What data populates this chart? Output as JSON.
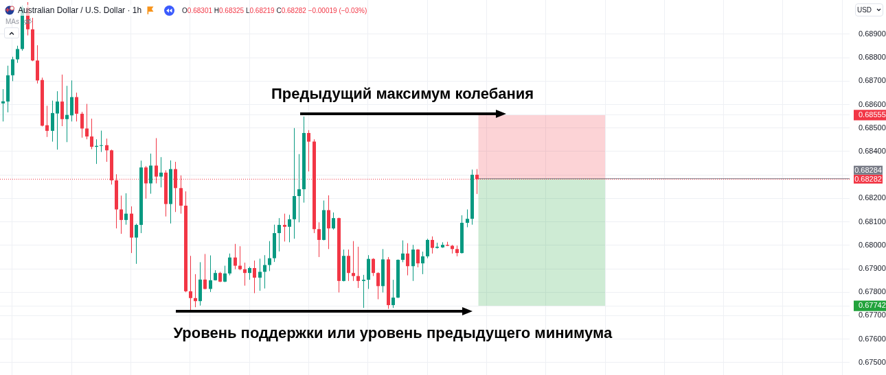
{
  "chart_data": {
    "type": "candlestick",
    "title": "Australian Dollar / U.S. Dollar · 1h",
    "subtitle": "O0.68301 H0.68325 L0.68219 C0.68282 −0.00019 (−0.03%)",
    "categories": [
      null,
      null,
      null,
      null,
      null,
      null,
      null,
      null,
      null,
      null,
      null,
      null,
      null,
      null,
      null,
      null,
      null,
      null,
      null,
      null,
      null,
      null,
      null,
      null,
      null,
      null,
      null,
      null,
      null,
      null,
      null,
      null,
      null,
      null,
      null,
      null,
      null,
      null,
      null,
      null,
      null,
      null,
      null,
      null,
      null,
      null,
      null,
      null,
      null,
      null,
      null,
      null,
      null,
      null,
      null,
      null,
      null,
      null,
      null,
      null,
      null,
      null,
      null,
      null,
      null,
      null,
      null,
      null,
      null,
      null,
      null,
      null,
      null,
      null,
      null,
      null,
      null,
      null,
      null,
      null,
      null,
      null,
      null,
      null,
      null,
      null,
      null,
      null,
      null,
      null,
      null,
      null,
      null,
      null,
      null,
      null,
      null,
      null,
      null,
      null,
      null,
      null,
      null,
      null,
      null,
      null,
      null,
      null,
      null,
      null,
      null,
      null,
      null,
      null,
      null,
      null,
      null,
      null,
      null,
      null,
      null,
      null,
      null,
      null,
      null,
      null,
      null,
      null,
      null,
      null,
      null,
      null,
      null,
      null,
      null,
      null,
      null,
      null,
      null,
      null,
      null,
      null,
      null,
      null,
      null,
      null,
      null,
      null,
      null,
      null,
      null,
      null,
      null,
      null,
      null,
      null,
      null,
      null,
      null,
      null,
      null,
      null,
      null,
      null,
      null,
      null,
      null,
      null,
      null,
      null,
      null,
      null
    ],
    "ohlc": [
      [
        0.68605,
        0.68666,
        0.68528,
        0.68614
      ],
      [
        0.68613,
        0.68766,
        0.68567,
        0.68725
      ],
      [
        0.68725,
        0.68804,
        0.687,
        0.68793
      ],
      [
        0.68793,
        0.68851,
        0.68778,
        0.68837
      ],
      [
        0.68837,
        0.69023,
        0.6883,
        0.69014
      ],
      [
        0.69014,
        0.69037,
        0.68895,
        0.68921
      ],
      [
        0.68921,
        0.6897,
        0.68785,
        0.68788
      ],
      [
        0.68788,
        0.68853,
        0.6869,
        0.68703
      ],
      [
        0.68705,
        0.68715,
        0.68507,
        0.6851
      ],
      [
        0.68512,
        0.68595,
        0.68462,
        0.68488
      ],
      [
        0.68488,
        0.68617,
        0.68442,
        0.68564
      ],
      [
        0.68562,
        0.68657,
        0.68408,
        0.68613
      ],
      [
        0.68613,
        0.68728,
        0.68508,
        0.68538
      ],
      [
        0.68538,
        0.6868,
        0.6844,
        0.68556
      ],
      [
        0.68554,
        0.68703,
        0.68528,
        0.68632
      ],
      [
        0.68632,
        0.68651,
        0.68528,
        0.68561
      ],
      [
        0.68561,
        0.68569,
        0.68459,
        0.68498
      ],
      [
        0.68498,
        0.68603,
        0.68452,
        0.68464
      ],
      [
        0.68464,
        0.6854,
        0.6841,
        0.6842
      ],
      [
        0.6842,
        0.68452,
        0.68347,
        0.68424
      ],
      [
        0.68424,
        0.68489,
        0.68398,
        0.68427
      ],
      [
        0.68427,
        0.68455,
        0.68356,
        0.68405
      ],
      [
        0.68405,
        0.68408,
        0.68259,
        0.68277
      ],
      [
        0.68277,
        0.68303,
        0.68072,
        0.68153
      ],
      [
        0.68153,
        0.68212,
        0.68049,
        0.68108
      ],
      [
        0.68108,
        0.68222,
        0.68088,
        0.68135
      ],
      [
        0.68135,
        0.68166,
        0.67967,
        0.68033
      ],
      [
        0.68033,
        0.68092,
        0.67921,
        0.68087
      ],
      [
        0.68087,
        0.68361,
        0.68052,
        0.68332
      ],
      [
        0.68332,
        0.68338,
        0.68199,
        0.68264
      ],
      [
        0.68264,
        0.68391,
        0.6822,
        0.6834
      ],
      [
        0.6834,
        0.68457,
        0.68264,
        0.68293
      ],
      [
        0.68293,
        0.68376,
        0.68247,
        0.6831
      ],
      [
        0.6831,
        0.6832,
        0.68123,
        0.68176
      ],
      [
        0.68176,
        0.68362,
        0.68093,
        0.68325
      ],
      [
        0.68325,
        0.68356,
        0.68142,
        0.68244
      ],
      [
        0.68244,
        0.68298,
        0.68135,
        0.68169
      ],
      [
        0.68169,
        0.6823,
        0.678,
        0.67804
      ],
      [
        0.67804,
        0.67955,
        0.67716,
        0.67775
      ],
      [
        0.67775,
        0.67877,
        0.67736,
        0.67762
      ],
      [
        0.67762,
        0.67928,
        0.67743,
        0.67854
      ],
      [
        0.67854,
        0.67963,
        0.67812,
        0.67814
      ],
      [
        0.67814,
        0.67957,
        0.67801,
        0.67851
      ],
      [
        0.67851,
        0.67894,
        0.6785,
        0.67882
      ],
      [
        0.67882,
        0.67887,
        0.67843,
        0.67845
      ],
      [
        0.67845,
        0.67913,
        0.67843,
        0.6788
      ],
      [
        0.6788,
        0.67965,
        0.67872,
        0.67948
      ],
      [
        0.67948,
        0.68006,
        0.67898,
        0.67913
      ],
      [
        0.67913,
        0.67996,
        0.67894,
        0.67898
      ],
      [
        0.67898,
        0.67926,
        0.67828,
        0.67882
      ],
      [
        0.67882,
        0.67909,
        0.67853,
        0.67903
      ],
      [
        0.67903,
        0.67935,
        0.67796,
        0.67862
      ],
      [
        0.67862,
        0.67943,
        0.67806,
        0.67887
      ],
      [
        0.67887,
        0.67958,
        0.67816,
        0.67916
      ],
      [
        0.67916,
        0.68018,
        0.6789,
        0.67945
      ],
      [
        0.67945,
        0.68088,
        0.67929,
        0.68052
      ],
      [
        0.68052,
        0.68116,
        0.67974,
        0.68087
      ],
      [
        0.68087,
        0.68135,
        0.68016,
        0.68079
      ],
      [
        0.68079,
        0.6813,
        0.68013,
        0.68111
      ],
      [
        0.68111,
        0.685,
        0.68028,
        0.6821
      ],
      [
        0.6821,
        0.68389,
        0.68098,
        0.68239
      ],
      [
        0.68239,
        0.68549,
        0.68182,
        0.68479
      ],
      [
        0.68479,
        0.68491,
        0.68315,
        0.68442
      ],
      [
        0.68442,
        0.68452,
        0.68052,
        0.68069
      ],
      [
        0.68069,
        0.68098,
        0.6795,
        0.68023
      ],
      [
        0.68023,
        0.68191,
        0.68021,
        0.6815
      ],
      [
        0.6815,
        0.68213,
        0.67984,
        0.68072
      ],
      [
        0.68072,
        0.6814,
        0.68067,
        0.68116
      ],
      [
        0.68116,
        0.68118,
        0.67799,
        0.67848
      ],
      [
        0.67848,
        0.67982,
        0.67846,
        0.67955
      ],
      [
        0.67955,
        0.67982,
        0.67848,
        0.67882
      ],
      [
        0.67882,
        0.68018,
        0.67848,
        0.67869
      ],
      [
        0.67869,
        0.67994,
        0.67818,
        0.67848
      ],
      [
        0.67848,
        0.67874,
        0.67733,
        0.67853
      ],
      [
        0.67853,
        0.67958,
        0.67814,
        0.67942
      ],
      [
        0.67942,
        0.67945,
        0.67869,
        0.67882
      ],
      [
        0.67882,
        0.67885,
        0.6777,
        0.67826
      ],
      [
        0.67826,
        0.67984,
        0.67799,
        0.6794
      ],
      [
        0.6794,
        0.6795,
        0.67729,
        0.67745
      ],
      [
        0.67745,
        0.67853,
        0.67733,
        0.67777
      ],
      [
        0.67777,
        0.6794,
        0.67775,
        0.67938
      ],
      [
        0.67938,
        0.68021,
        0.67928,
        0.67965
      ],
      [
        0.67965,
        0.68009,
        0.67872,
        0.67911
      ],
      [
        0.67911,
        0.68002,
        0.67848,
        0.67982
      ],
      [
        0.67982,
        0.67984,
        0.67906,
        0.67923
      ],
      [
        0.67923,
        0.67973,
        0.67877,
        0.67953
      ],
      [
        0.67953,
        0.68028,
        0.67945,
        0.68023
      ],
      [
        0.68023,
        0.68038,
        0.67965,
        0.67989
      ],
      [
        0.67989,
        0.68011,
        0.67986,
        0.67994
      ],
      [
        0.67991,
        0.68013,
        0.67989,
        0.68002
      ],
      [
        0.68002,
        0.68015,
        0.67997,
        0.67998
      ],
      [
        0.67998,
        0.68002,
        0.67965,
        0.67984
      ],
      [
        0.67984,
        0.67999,
        0.67953,
        0.67967
      ],
      [
        0.67967,
        0.68128,
        0.67965,
        0.68096
      ],
      [
        0.68096,
        0.68153,
        0.68077,
        0.68113
      ],
      [
        0.68113,
        0.68323,
        0.68088,
        0.68301
      ],
      [
        0.68301,
        0.68325,
        0.68219,
        0.68282
      ],
      null,
      null,
      null,
      null,
      null,
      null,
      null,
      null,
      null,
      null,
      null,
      null,
      null,
      null,
      null,
      null,
      null,
      null,
      null,
      null,
      null,
      null,
      null,
      null,
      null,
      null,
      null,
      null,
      null,
      null,
      null,
      null,
      null,
      null,
      null,
      null,
      null,
      null,
      null,
      null,
      null,
      null,
      null,
      null,
      null,
      null,
      null,
      null,
      null,
      null,
      null,
      null,
      null,
      null,
      null,
      null,
      null,
      null,
      null,
      null,
      null,
      null,
      null,
      null,
      null,
      null,
      null,
      null,
      null,
      null,
      null,
      null,
      null,
      null,
      null
    ],
    "colors": [
      "#089981",
      "#089981",
      "#089981",
      "#089981",
      "#089981",
      "#f23645",
      "#f23645",
      "#f23645",
      "#f23645",
      "#f23645",
      "#089981",
      "#089981",
      "#f23645",
      "#089981",
      "#089981",
      "#f23645",
      "#f23645",
      "#f23645",
      "#f23645",
      "#089981",
      "#089981",
      "#f23645",
      "#f23645",
      "#f23645",
      "#f23645",
      "#089981",
      "#f23645",
      "#089981",
      "#089981",
      "#f23645",
      "#089981",
      "#f23645",
      "#089981",
      "#f23645",
      "#089981",
      "#f23645",
      "#f23645",
      "#f23645",
      "#f23645",
      "#f23645",
      "#089981",
      "#f23645",
      "#089981",
      "#089981",
      "#f23645",
      "#089981",
      "#089981",
      "#f23645",
      "#f23645",
      "#f23645",
      "#089981",
      "#f23645",
      "#089981",
      "#089981",
      "#089981",
      "#089981",
      "#089981",
      "#f23645",
      "#089981",
      "#089981",
      "#089981",
      "#089981",
      "#f23645",
      "#f23645",
      "#f23645",
      "#089981",
      "#f23645",
      "#089981",
      "#f23645",
      "#089981",
      "#f23645",
      "#f23645",
      "#f23645",
      "#089981",
      "#089981",
      "#f23645",
      "#f23645",
      "#089981",
      "#f23645",
      "#089981",
      "#089981",
      "#089981",
      "#f23645",
      "#089981",
      "#f23645",
      "#089981",
      "#089981",
      "#f23645",
      "#089981",
      "#089981",
      "#f23645",
      "#f23645",
      "#f23645",
      "#089981",
      "#089981",
      "#089981",
      "#f23645",
      null,
      null,
      null,
      null,
      null,
      null,
      null,
      null,
      null,
      null,
      null,
      null,
      null,
      null,
      null,
      null,
      null,
      null,
      null,
      null,
      null,
      null,
      null,
      null,
      null,
      null,
      null,
      null,
      null,
      null,
      null,
      null,
      null,
      null,
      null,
      null,
      null,
      null,
      null,
      null,
      null,
      null,
      null,
      null,
      null,
      null,
      null,
      null,
      null,
      null,
      null,
      null,
      null,
      null,
      null,
      null,
      null,
      null,
      null,
      null,
      null,
      null,
      null,
      null,
      null,
      null,
      null,
      null,
      null,
      null,
      null,
      null,
      null,
      null,
      null
    ],
    "ylim": [
      0.67447,
      0.69046
    ],
    "yticks": [
      {
        "value": 0.675,
        "label": "0.67500"
      },
      {
        "value": 0.676,
        "label": "0.67600"
      },
      {
        "value": 0.677,
        "label": "0.67700"
      },
      {
        "value": 0.67742,
        "label": "0.67742"
      },
      {
        "value": 0.678,
        "label": "0.67800"
      },
      {
        "value": 0.679,
        "label": "0.67900"
      },
      {
        "value": 0.68,
        "label": "0.68000"
      },
      {
        "value": 0.681,
        "label": "0.68100"
      },
      {
        "value": 0.682,
        "label": "0.68200"
      },
      {
        "value": 0.683,
        "label": null
      },
      {
        "value": 0.684,
        "label": "0.68400"
      },
      {
        "value": 0.685,
        "label": "0.68500"
      },
      {
        "value": 0.68555,
        "label": "0.68555"
      },
      {
        "value": 0.686,
        "label": "0.68600"
      },
      {
        "value": 0.687,
        "label": "0.68700"
      },
      {
        "value": 0.688,
        "label": "0.68800"
      },
      {
        "value": 0.689,
        "label": "0.68900"
      }
    ],
    "grid": true,
    "tick_labels": "y",
    "bands": [
      {
        "axis": "y",
        "from": 0.68284,
        "to": 0.68555,
        "color": "#f23645"
      },
      {
        "axis": "y",
        "from": 0.68284,
        "to": 0.67742,
        "color": "#22a33c"
      }
    ],
    "ref_lines": [
      {
        "axis": "y",
        "value": 0.68284,
        "label": "0.68284",
        "color": "#787b86",
        "line_style": "solid"
      },
      {
        "axis": "y",
        "value": 0.68282,
        "label": "0.68282",
        "color": "#f23645",
        "line_style": "dotted"
      }
    ],
    "annotations": [
      "Предыдущий максимум колебания",
      "Уровень поддержки или уровень предыдущего минимума",
      "MAs",
      "USD"
    ]
  }
}
